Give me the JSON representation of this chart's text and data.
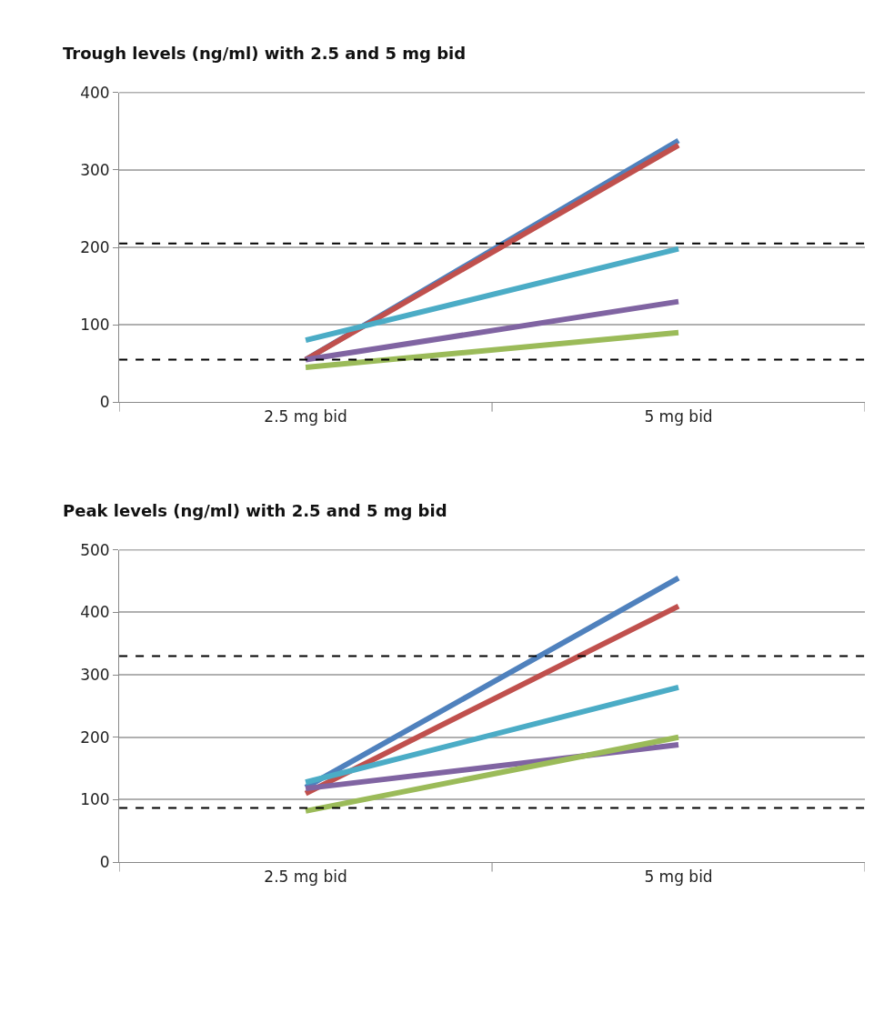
{
  "chart_data": [
    {
      "type": "line",
      "title": "Trough levels (ng/ml) with 2.5 and 5 mg bid",
      "categories": [
        "2.5 mg bid",
        "5 mg bid"
      ],
      "series": [
        {
          "color": "#4f81bd",
          "values": [
            55,
            338
          ]
        },
        {
          "color": "#c0504d",
          "values": [
            55,
            332
          ]
        },
        {
          "color": "#4bacc6",
          "values": [
            80,
            198
          ]
        },
        {
          "color": "#8064a2",
          "values": [
            55,
            130
          ]
        },
        {
          "color": "#9bbb59",
          "values": [
            45,
            90
          ]
        }
      ],
      "ylim": [
        0,
        400
      ],
      "yticks": [
        0,
        100,
        200,
        300,
        400
      ],
      "grid": "y",
      "marker": "none",
      "line_style": "solid",
      "ref_lines": [
        {
          "axis": "y",
          "value": 205,
          "color": "#000000",
          "line_style": "dashed"
        },
        {
          "axis": "y",
          "value": 55,
          "color": "#000000",
          "line_style": "dashed"
        }
      ]
    },
    {
      "type": "line",
      "title": "Peak levels (ng/ml) with 2.5 and 5 mg bid",
      "categories": [
        "2.5 mg bid",
        "5 mg bid"
      ],
      "series": [
        {
          "color": "#4f81bd",
          "values": [
            120,
            455
          ]
        },
        {
          "color": "#c0504d",
          "values": [
            110,
            410
          ]
        },
        {
          "color": "#4bacc6",
          "values": [
            128,
            280
          ]
        },
        {
          "color": "#8064a2",
          "values": [
            118,
            188
          ]
        },
        {
          "color": "#9bbb59",
          "values": [
            82,
            200
          ]
        }
      ],
      "ylim": [
        0,
        500
      ],
      "yticks": [
        0,
        100,
        200,
        300,
        400,
        500
      ],
      "grid": "y",
      "marker": "none",
      "line_style": "solid",
      "ref_lines": [
        {
          "axis": "y",
          "value": 330,
          "color": "#000000",
          "line_style": "dashed"
        },
        {
          "axis": "y",
          "value": 87,
          "color": "#000000",
          "line_style": "dashed"
        }
      ]
    }
  ]
}
